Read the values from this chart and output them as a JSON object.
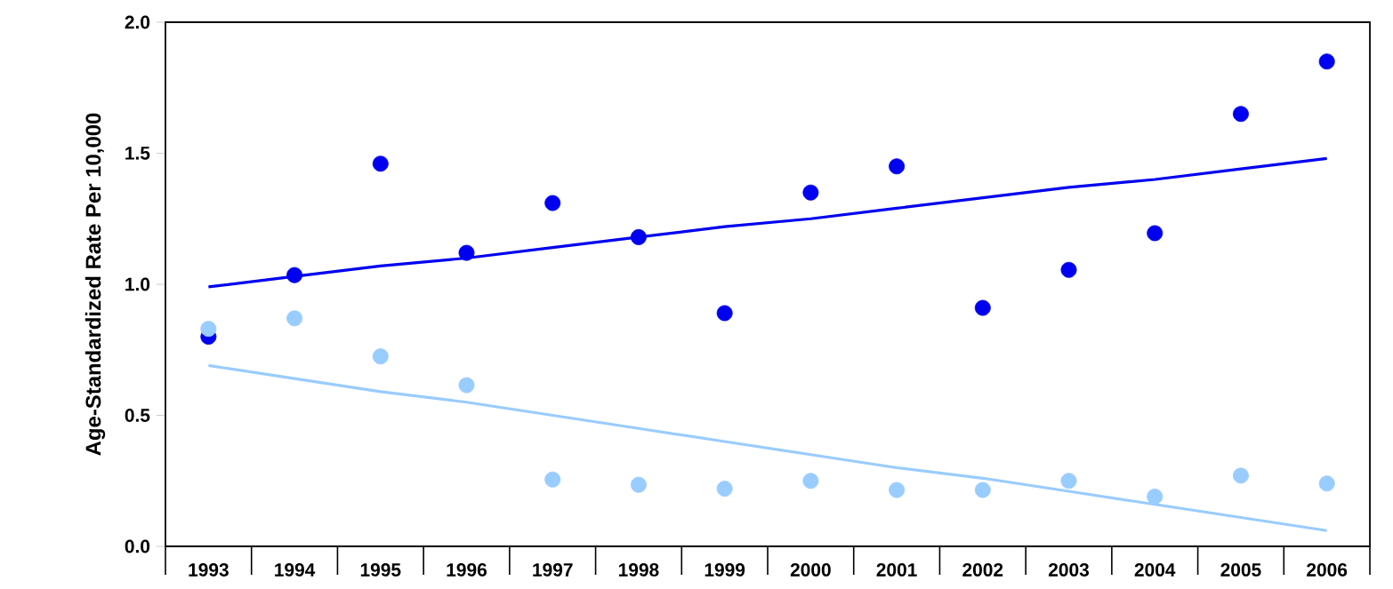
{
  "chart_data": {
    "type": "scatter",
    "ylabel": "Age-Standardized Rate Per 10,000",
    "categories": [
      "1993",
      "1994",
      "1995",
      "1996",
      "1997",
      "1998",
      "1999",
      "2000",
      "2001",
      "2002",
      "2003",
      "2004",
      "2005",
      "2006"
    ],
    "ylim": [
      0,
      2
    ],
    "yticks": [
      {
        "value": 0,
        "label": "0.0"
      },
      {
        "value": 0.5,
        "label": "0.5"
      },
      {
        "value": 1,
        "label": "1.0"
      },
      {
        "value": 1.5,
        "label": "1.5"
      },
      {
        "value": 2,
        "label": "2.0"
      }
    ],
    "grid": false,
    "legend": false,
    "series": [
      {
        "marker": "circle",
        "color": "#0000f0",
        "values": [
          0.8,
          1.035,
          1.46,
          1.12,
          1.31,
          1.18,
          0.89,
          1.35,
          1.45,
          0.91,
          1.055,
          1.195,
          1.65,
          1.85
        ]
      },
      {
        "marker": "circle",
        "color": "#99ccff",
        "values": [
          0.83,
          0.87,
          0.725,
          0.615,
          0.255,
          0.235,
          0.22,
          0.25,
          0.215,
          0.215,
          0.25,
          0.19,
          0.27,
          0.24
        ]
      },
      {
        "type": "line",
        "marker": "none",
        "color": "#0000f0",
        "values": [
          0.99,
          1.03,
          1.07,
          1.1,
          1.14,
          1.18,
          1.22,
          1.25,
          1.29,
          1.33,
          1.37,
          1.4,
          1.44,
          1.48
        ]
      },
      {
        "type": "line",
        "marker": "none",
        "color": "#99ccff",
        "values": [
          0.69,
          0.64,
          0.59,
          0.55,
          0.5,
          0.45,
          0.4,
          0.35,
          0.3,
          0.26,
          0.21,
          0.16,
          0.11,
          0.06
        ]
      }
    ]
  }
}
